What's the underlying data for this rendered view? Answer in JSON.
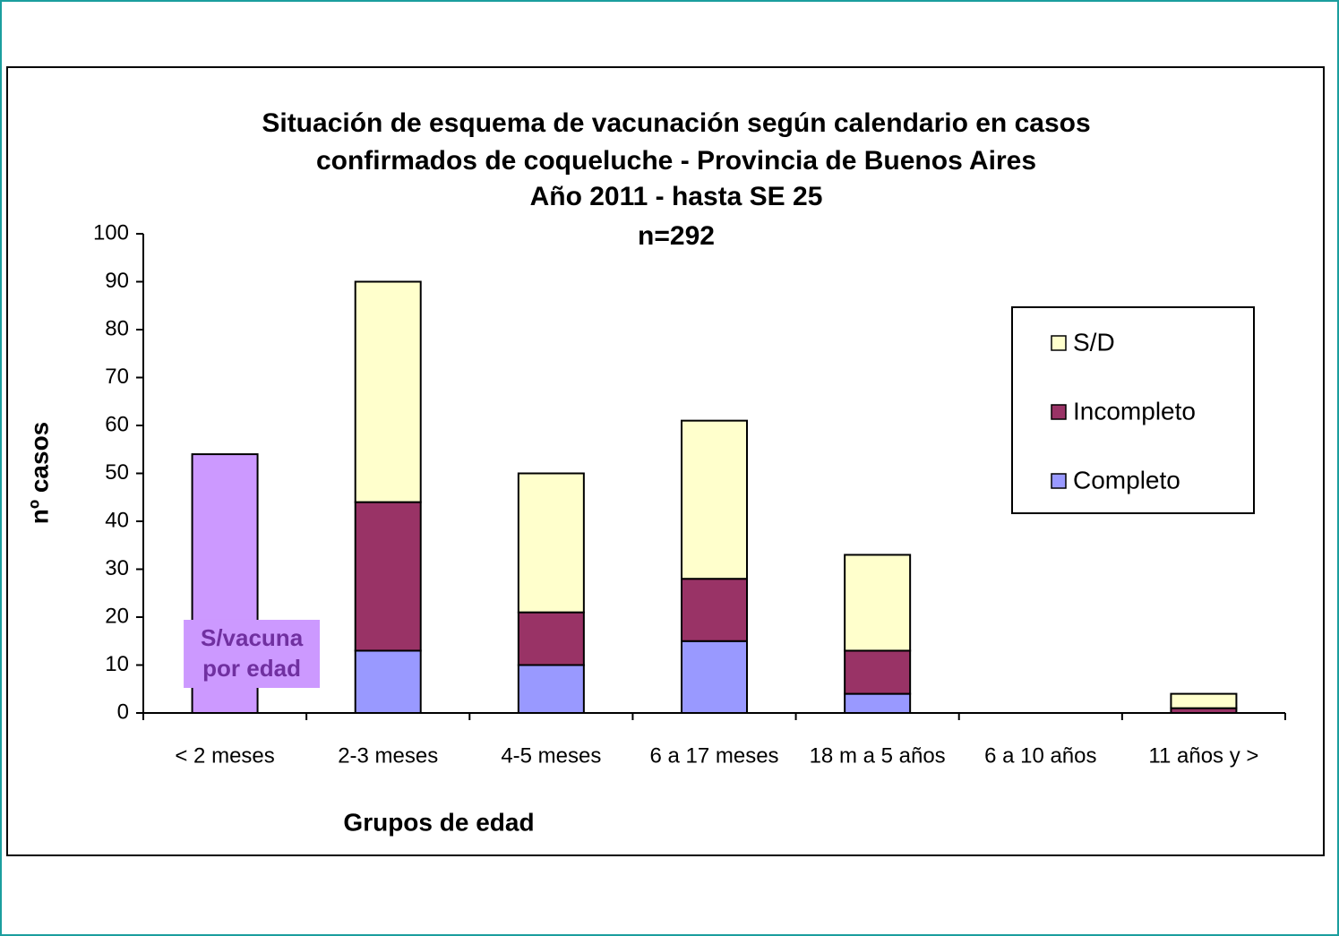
{
  "chart_data": {
    "type": "stacked_bar",
    "title": [
      "Situación de esquema de vacunación según calendario en casos",
      "confirmados de coqueluche - Provincia de Buenos Aires",
      "Año 2011 - hasta SE 25"
    ],
    "subtitle": "n=292",
    "x_label": "Grupos de edad",
    "y_label": "nº casos",
    "categories": [
      "< 2 meses",
      "2-3 meses",
      "4-5 meses",
      "6 a 17 meses",
      "18 m a 5 años",
      "6 a 10 años",
      "11 años y >"
    ],
    "series": [
      {
        "name": "Completo",
        "color": "#9999ff",
        "values": [
          null,
          13,
          10,
          15,
          4,
          0,
          0
        ]
      },
      {
        "name": "Incompleto",
        "color": "#993366",
        "values": [
          null,
          31,
          11,
          13,
          9,
          0,
          1
        ]
      },
      {
        "name": "S/D",
        "color": "#ffffcc",
        "values": [
          null,
          46,
          29,
          33,
          20,
          0,
          3
        ]
      },
      {
        "label": [
          "S/vacuna",
          "por edad"
        ],
        "color": "#cc99ff",
        "legend": false,
        "values": [
          54,
          null,
          null,
          null,
          null,
          null,
          null
        ]
      }
    ],
    "ylim": [
      0,
      100
    ],
    "yticks": [
      0,
      10,
      20,
      30,
      40,
      50,
      60,
      70,
      80,
      90,
      100
    ],
    "grid": false,
    "legend": "right"
  }
}
